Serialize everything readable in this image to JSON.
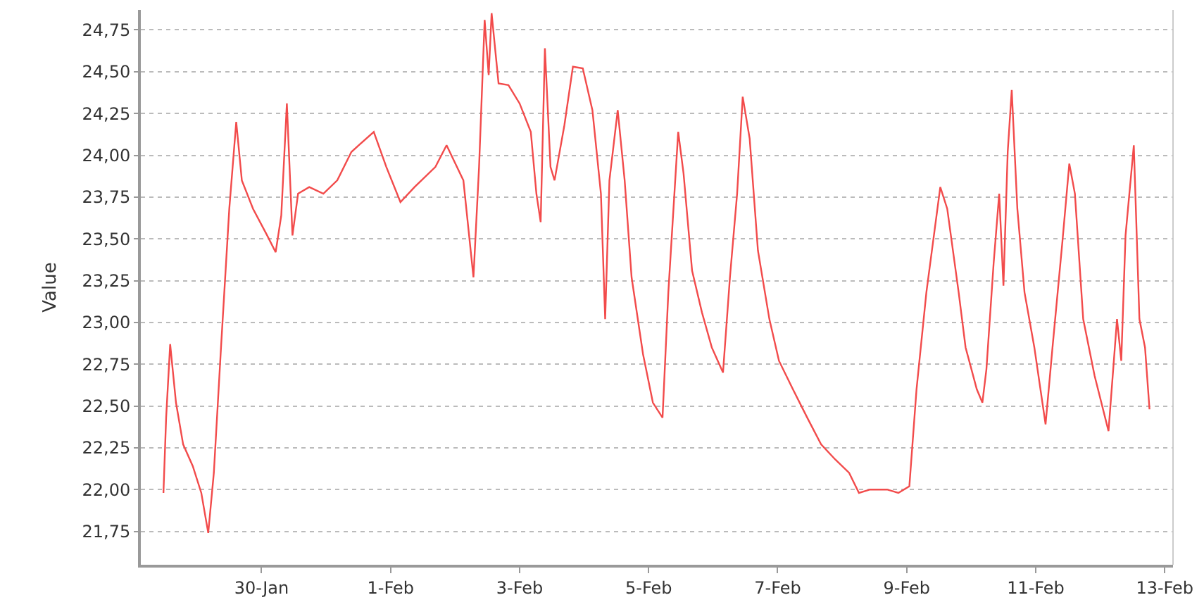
{
  "chart_data": {
    "type": "line",
    "ylabel": "Value",
    "x": [
      "--01-28T11:30",
      "--01-28T12:30",
      "--01-28T14:00",
      "--01-28T16:10",
      "--01-28T18:50",
      "--01-28T22:25",
      "--01-29T01:35",
      "--01-29T04:10",
      "--01-29T06:15",
      "--01-29T08:55",
      "--01-29T12:00",
      "--01-29T14:35",
      "--01-29T16:40",
      "--01-29T20:50",
      "--01-30T02:05",
      "--01-30T05:15",
      "--01-30T07:20",
      "--01-30T09:25",
      "--01-30T11:30",
      "--01-30T13:35",
      "--01-30T17:45",
      "--01-30T23:00",
      "--01-31T04:10",
      "--01-31T09:25",
      "--01-31T17:45",
      "--01-31T22:25",
      "--02-01T03:40",
      "--02-01T08:55",
      "--02-01T16:40",
      "--02-01T20:50",
      "--02-02T03:05",
      "--02-02T06:50",
      "--02-02T08:55",
      "--02-02T11:00",
      "--02-02T12:30",
      "--02-02T13:35",
      "--02-02T16:10",
      "--02-02T19:50",
      "--02-03T00:00",
      "--02-03T04:10",
      "--02-03T06:15",
      "--02-03T07:50",
      "--02-03T09:25",
      "--02-03T11:30",
      "--02-03T13:00",
      "--02-03T16:40",
      "--02-03T19:50",
      "--02-03T23:30",
      "--02-04T03:05",
      "--02-04T06:15",
      "--02-04T07:50",
      "--02-04T09:25",
      "--02-04T12:30",
      "--02-04T15:05",
      "--02-04T17:40",
      "--02-04T21:55",
      "--02-05T01:35",
      "--02-05T05:10",
      "--02-05T07:20",
      "--02-05T11:00",
      "--02-05T13:00",
      "--02-05T16:10",
      "--02-05T19:50",
      "--02-05T23:30",
      "--02-06T03:40",
      "--02-06T06:15",
      "--02-06T08:55",
      "--02-06T11:00",
      "--02-06T13:35",
      "--02-06T16:40",
      "--02-06T20:55",
      "--02-07T00:30",
      "--02-07T05:40",
      "--02-07T11:00",
      "--02-07T16:10",
      "--02-07T21:25",
      "--02-08T02:35",
      "--02-08T06:15",
      "--02-08T10:25",
      "--02-08T16:40",
      "--02-08T20:55",
      "--02-09T01:00",
      "--02-09T03:40",
      "--02-09T07:20",
      "--02-09T12:30",
      "--02-09T15:05",
      "--02-09T19:20",
      "--02-09T21:55",
      "--02-10T02:05",
      "--02-10T04:10",
      "--02-10T05:40",
      "--02-10T08:20",
      "--02-10T10:25",
      "--02-10T12:00",
      "--02-10T13:35",
      "--02-10T15:05",
      "--02-10T17:10",
      "--02-10T19:50",
      "--02-10T23:30",
      "--02-11T03:40",
      "--02-11T06:15",
      "--02-11T09:55",
      "--02-11T12:30",
      "--02-11T14:35",
      "--02-11T17:40",
      "--02-11T21:55",
      "--02-12T03:05",
      "--02-12T06:15",
      "--02-12T07:50",
      "--02-12T09:25",
      "--02-12T12:30",
      "--02-12T14:35",
      "--02-12T16:40",
      "--02-12T18:20"
    ],
    "series": [
      {
        "color": "#f24b4b",
        "values": [
          21.98,
          22.43,
          22.87,
          22.52,
          22.27,
          22.14,
          21.98,
          21.74,
          22.1,
          22.85,
          23.68,
          24.2,
          23.85,
          23.68,
          23.52,
          23.42,
          23.64,
          24.31,
          23.52,
          23.77,
          23.81,
          23.77,
          23.85,
          24.02,
          24.14,
          23.93,
          23.72,
          23.81,
          23.93,
          24.06,
          23.85,
          23.27,
          23.93,
          24.81,
          24.48,
          24.85,
          24.43,
          24.42,
          24.31,
          24.14,
          23.77,
          23.6,
          24.64,
          23.93,
          23.85,
          24.18,
          24.53,
          24.52,
          24.27,
          23.77,
          23.02,
          23.85,
          24.27,
          23.85,
          23.27,
          22.81,
          22.52,
          22.43,
          23.18,
          24.14,
          23.89,
          23.31,
          23.06,
          22.85,
          22.7,
          23.27,
          23.77,
          24.35,
          24.1,
          23.43,
          23.02,
          22.77,
          22.6,
          22.43,
          22.27,
          22.18,
          22.1,
          21.98,
          22.0,
          22.0,
          21.98,
          22.02,
          22.6,
          23.18,
          23.81,
          23.68,
          23.18,
          22.85,
          22.6,
          22.52,
          22.72,
          23.35,
          23.77,
          23.22,
          24.02,
          24.39,
          23.68,
          23.18,
          22.85,
          22.39,
          22.85,
          23.48,
          23.95,
          23.77,
          23.02,
          22.68,
          22.35,
          23.02,
          22.77,
          23.52,
          24.06,
          23.02,
          22.85,
          22.48
        ]
      }
    ],
    "xlim": [
      "--01-28T03:05",
      "--02-13T03:05"
    ],
    "xticks": [
      {
        "value": "--01-30",
        "label": "30-Jan"
      },
      {
        "value": "--02-01",
        "label": "1-Feb"
      },
      {
        "value": "--02-03",
        "label": "3-Feb"
      },
      {
        "value": "--02-05",
        "label": "5-Feb"
      },
      {
        "value": "--02-07",
        "label": "7-Feb"
      },
      {
        "value": "--02-09",
        "label": "9-Feb"
      },
      {
        "value": "--02-11",
        "label": "11-Feb"
      },
      {
        "value": "--02-13",
        "label": "13-Feb"
      }
    ],
    "ylim": [
      21.55,
      24.87
    ],
    "yticks": [
      {
        "value": 21.75,
        "label": "21,75"
      },
      {
        "value": 22.0,
        "label": "22,00"
      },
      {
        "value": 22.25,
        "label": "22,25"
      },
      {
        "value": 22.5,
        "label": "22,50"
      },
      {
        "value": 22.75,
        "label": "22,75"
      },
      {
        "value": 23.0,
        "label": "23,00"
      },
      {
        "value": 23.25,
        "label": "23,25"
      },
      {
        "value": 23.5,
        "label": "23,50"
      },
      {
        "value": 23.75,
        "label": "23,75"
      },
      {
        "value": 24.0,
        "label": "24,00"
      },
      {
        "value": 24.25,
        "label": "24,25"
      },
      {
        "value": 24.5,
        "label": "24,50"
      },
      {
        "value": 24.75,
        "label": "24,75"
      }
    ],
    "grid": "y",
    "line_style": "solid",
    "marker": "none"
  }
}
